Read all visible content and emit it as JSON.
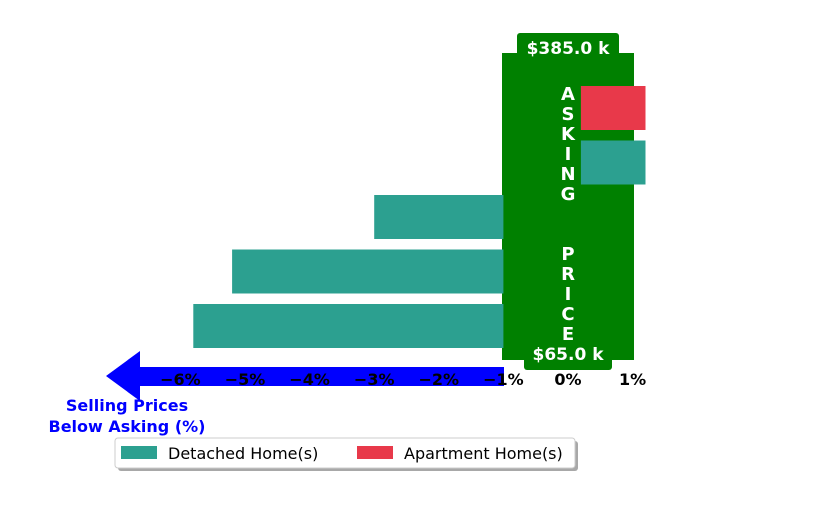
{
  "chart_data": {
    "type": "bar",
    "orientation": "horizontal",
    "x_ticks": [
      "−6%",
      "−5%",
      "−4%",
      "−3%",
      "−2%",
      "−1%",
      "0%",
      "1%"
    ],
    "xlim": [
      -6.6,
      1.3
    ],
    "series": [
      {
        "name": "Detached Home(s)",
        "color": "#2ca090",
        "bars": [
          {
            "row": 1,
            "start": 0.2,
            "end": 1.2
          },
          {
            "row": 2,
            "start": -3.0,
            "end": -1.0
          },
          {
            "row": 3,
            "start": -5.2,
            "end": -1.0
          },
          {
            "row": 4,
            "start": -5.8,
            "end": -1.0
          }
        ]
      },
      {
        "name": "Apartment Home(s)",
        "color": "#e8394a",
        "bars": [
          {
            "row": 0,
            "start": 0.2,
            "end": 1.2
          }
        ]
      }
    ],
    "asking_price_band": {
      "label": "ASKING  PRICE",
      "from": -1.0,
      "to": 1.0,
      "color": "#008000",
      "top_value": "$385.0 k",
      "bottom_value": "$65.0 k"
    },
    "arrow_label": [
      "Selling Prices",
      "Below Asking (%)"
    ],
    "arrow_color": "#0000ff",
    "legend": {
      "placement": "bottom-left",
      "entries": [
        {
          "label": "Detached Home(s)",
          "color": "#2ca090"
        },
        {
          "label": "Apartment Home(s)",
          "color": "#e8394a"
        }
      ]
    }
  }
}
